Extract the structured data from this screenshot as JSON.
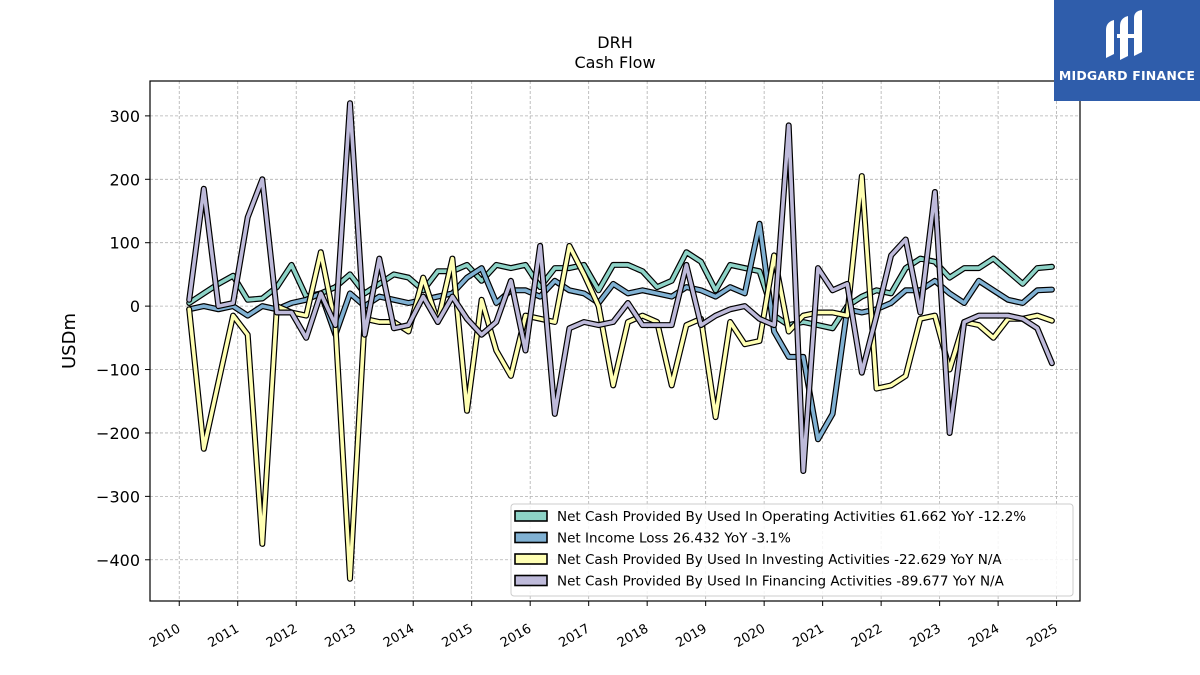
{
  "title_line1": "DRH",
  "title_line2": "Cash Flow",
  "logo": {
    "text": "MIDGARD FINANCE",
    "mark_icon": "midgard-logo-mark",
    "bg_color": "#2f5dab"
  },
  "chart_data": {
    "type": "line",
    "title": "DRH Cash Flow",
    "ylabel": "USDm",
    "xlabel": "",
    "xlim": [
      2009.5,
      2025.4
    ],
    "ylim": [
      -465,
      355
    ],
    "xticks": [
      2010,
      2011,
      2012,
      2013,
      2014,
      2015,
      2016,
      2017,
      2018,
      2019,
      2020,
      2021,
      2022,
      2023,
      2024,
      2025
    ],
    "yticks": [
      300,
      200,
      100,
      0,
      -100,
      -200,
      -300,
      -400
    ],
    "ytick_labels": [
      "300",
      "200",
      "100",
      "0",
      "−100",
      "−200",
      "−300",
      "−400"
    ],
    "grid": true,
    "legend_position": "lower-right",
    "x": [
      2010.17,
      2010.42,
      2010.67,
      2010.92,
      2011.17,
      2011.42,
      2011.67,
      2011.92,
      2012.17,
      2012.42,
      2012.67,
      2012.92,
      2013.17,
      2013.42,
      2013.67,
      2013.92,
      2014.17,
      2014.42,
      2014.67,
      2014.92,
      2015.17,
      2015.42,
      2015.67,
      2015.92,
      2016.17,
      2016.42,
      2016.67,
      2016.92,
      2017.17,
      2017.42,
      2017.67,
      2017.92,
      2018.17,
      2018.42,
      2018.67,
      2018.92,
      2019.17,
      2019.42,
      2019.67,
      2019.92,
      2020.17,
      2020.42,
      2020.67,
      2020.92,
      2021.17,
      2021.42,
      2021.67,
      2021.92,
      2022.17,
      2022.42,
      2022.67,
      2022.92,
      2023.17,
      2023.42,
      2023.67,
      2023.92,
      2024.17,
      2024.42,
      2024.67,
      2024.92
    ],
    "series": [
      {
        "name": "Net Cash Provided By Used In Operating Activities  61.662 YoY -12.2%",
        "color": "#8dd3c7",
        "values": [
          5,
          20,
          35,
          48,
          10,
          12,
          30,
          65,
          15,
          20,
          30,
          50,
          20,
          35,
          50,
          45,
          25,
          55,
          55,
          65,
          40,
          65,
          60,
          65,
          30,
          60,
          60,
          65,
          25,
          65,
          65,
          55,
          30,
          40,
          85,
          70,
          25,
          65,
          60,
          55,
          -15,
          -30,
          -25,
          -30,
          -35,
          0,
          15,
          25,
          20,
          60,
          75,
          70,
          45,
          60,
          60,
          75,
          55,
          35,
          60,
          62
        ]
      },
      {
        "name": "Net Income Loss  26.432 YoY -3.1%",
        "color": "#80b1d3",
        "values": [
          -5,
          0,
          -5,
          0,
          -15,
          0,
          -5,
          5,
          10,
          20,
          -45,
          20,
          0,
          15,
          10,
          5,
          10,
          15,
          20,
          45,
          60,
          5,
          25,
          25,
          15,
          40,
          25,
          20,
          5,
          35,
          20,
          25,
          20,
          15,
          30,
          25,
          15,
          30,
          20,
          130,
          -40,
          -80,
          -80,
          -210,
          -170,
          -5,
          -10,
          -5,
          5,
          25,
          25,
          40,
          20,
          5,
          40,
          25,
          10,
          5,
          25,
          26
        ]
      },
      {
        "name": "Net Cash Provided By Used In Investing Activities  -22.629 YoY N/A",
        "color": "#ffffb3",
        "values": [
          -5,
          -225,
          -120,
          -15,
          -45,
          -375,
          0,
          -10,
          -15,
          85,
          -30,
          -430,
          -20,
          -25,
          -25,
          -40,
          45,
          -25,
          75,
          -165,
          10,
          -70,
          -110,
          -15,
          -20,
          -25,
          95,
          50,
          0,
          -125,
          -25,
          -15,
          -25,
          -125,
          -30,
          -20,
          -175,
          -25,
          -60,
          -55,
          80,
          -40,
          -15,
          -10,
          -10,
          -15,
          205,
          -130,
          -125,
          -110,
          -20,
          -15,
          -100,
          -25,
          -30,
          -50,
          -20,
          -20,
          -15,
          -23
        ]
      },
      {
        "name": "Net Cash Provided By Used In Financing Activities  -89.677 YoY N/A",
        "color": "#bebada",
        "values": [
          10,
          185,
          0,
          5,
          140,
          200,
          -10,
          -10,
          -50,
          20,
          -30,
          320,
          -45,
          75,
          -35,
          -30,
          15,
          -25,
          15,
          -20,
          -45,
          -25,
          40,
          -70,
          95,
          -170,
          -35,
          -25,
          -30,
          -25,
          5,
          -30,
          -30,
          -30,
          65,
          -30,
          -15,
          -5,
          0,
          -20,
          -30,
          285,
          -260,
          60,
          25,
          35,
          -105,
          -15,
          80,
          105,
          -10,
          180,
          -200,
          -25,
          -15,
          -15,
          -15,
          -20,
          -35,
          -90
        ]
      }
    ]
  }
}
